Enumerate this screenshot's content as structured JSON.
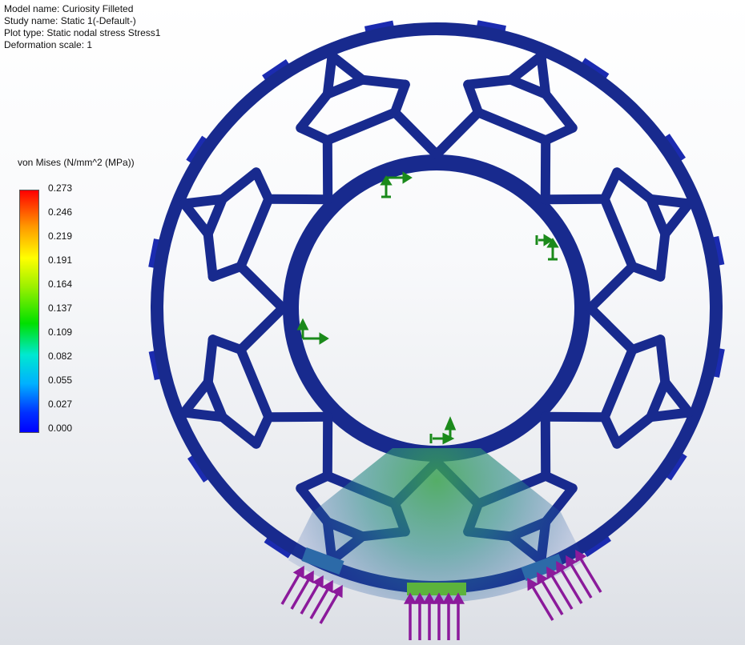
{
  "info": {
    "model_name": "Model name: Curiosity Filleted",
    "study_name": "Study name: Static 1(-Default-)",
    "plot_type": "Plot type: Static nodal stress Stress1",
    "deformation": "Deformation scale: 1"
  },
  "legend": {
    "title": "von Mises (N/mm^2 (MPa))",
    "ticks": [
      "0.273",
      "0.246",
      "0.219",
      "0.191",
      "0.164",
      "0.137",
      "0.109",
      "0.082",
      "0.055",
      "0.027",
      "0.000"
    ]
  },
  "colors": {
    "part": "#182a8e",
    "part_dark": "#0f1d6a",
    "stress_low": "#2a56b0",
    "stress_mid": "#2c8c7c",
    "stress_high": "#55b040",
    "fixture": "#1b8a1b",
    "load": "#8b1a9b"
  }
}
